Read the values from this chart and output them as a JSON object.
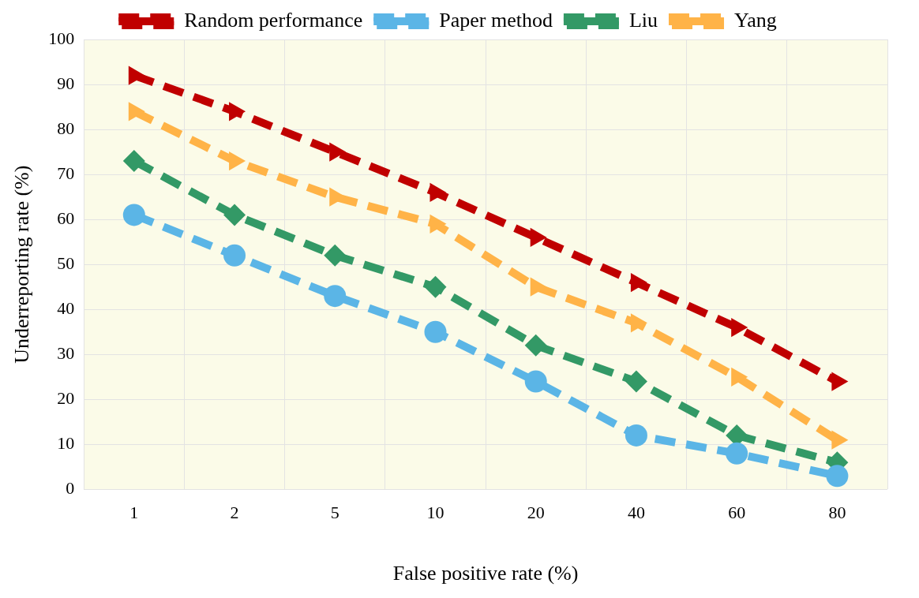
{
  "chart_data": {
    "type": "line",
    "xlabel": "False positive rate (%)",
    "ylabel": "Underreporting rate (%)",
    "categories": [
      "1",
      "2",
      "5",
      "10",
      "20",
      "40",
      "60",
      "80"
    ],
    "ylim": [
      0,
      100
    ],
    "yticks": [
      0,
      10,
      20,
      30,
      40,
      50,
      60,
      70,
      80,
      90,
      100
    ],
    "grid": true,
    "legend": "top",
    "line_style": "dashed",
    "series": [
      {
        "name": "Random performance",
        "color": "#c00000",
        "marker": "triangle",
        "values": [
          92,
          84,
          75,
          66,
          56,
          46,
          36,
          24
        ]
      },
      {
        "name": "Paper method",
        "color": "#5bb5e6",
        "marker": "circle",
        "values": [
          61,
          52,
          43,
          35,
          24,
          12,
          8,
          3
        ]
      },
      {
        "name": "Liu",
        "color": "#339966",
        "marker": "diamond",
        "values": [
          73,
          61,
          52,
          45,
          32,
          24,
          12,
          6
        ]
      },
      {
        "name": "Yang",
        "color": "#ffb347",
        "marker": "triangle",
        "values": [
          84,
          73,
          65,
          59,
          45,
          37,
          25,
          11
        ]
      }
    ]
  }
}
